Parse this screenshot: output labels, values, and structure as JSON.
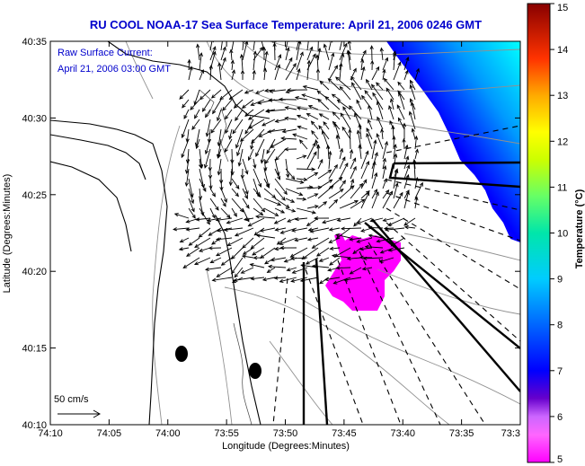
{
  "title": "RU COOL  NOAA-17  Sea Surface Temperature:  April 21, 2006 0246 GMT",
  "annotation": {
    "line1": "Raw Surface Current:",
    "line2": "April 21, 2006 03:00 GMT"
  },
  "scale_label": "50 cm/s",
  "xlabel": "Longitude (Degrees:Minutes)",
  "ylabel": "Latitude (Degrees:Minutes)",
  "xticks": [
    "74:10",
    "74:05",
    "74:00",
    "73:55",
    "73:50",
    "73:45",
    "73:40",
    "73:35",
    "73:3"
  ],
  "yticks": [
    "40:35",
    "40:30",
    "40:25",
    "40:20",
    "40:15",
    "40:10"
  ],
  "colorbar": {
    "label": "Temperature (°C)",
    "ticks": [
      "15",
      "14",
      "13",
      "12",
      "11",
      "10",
      "9",
      "8",
      "7",
      "6",
      "5"
    ],
    "min": 5,
    "max": 15
  },
  "colors": {
    "title": "#0000cc",
    "vectors": "#000000",
    "coast": "#000000",
    "bathymetry": "#808080"
  }
}
